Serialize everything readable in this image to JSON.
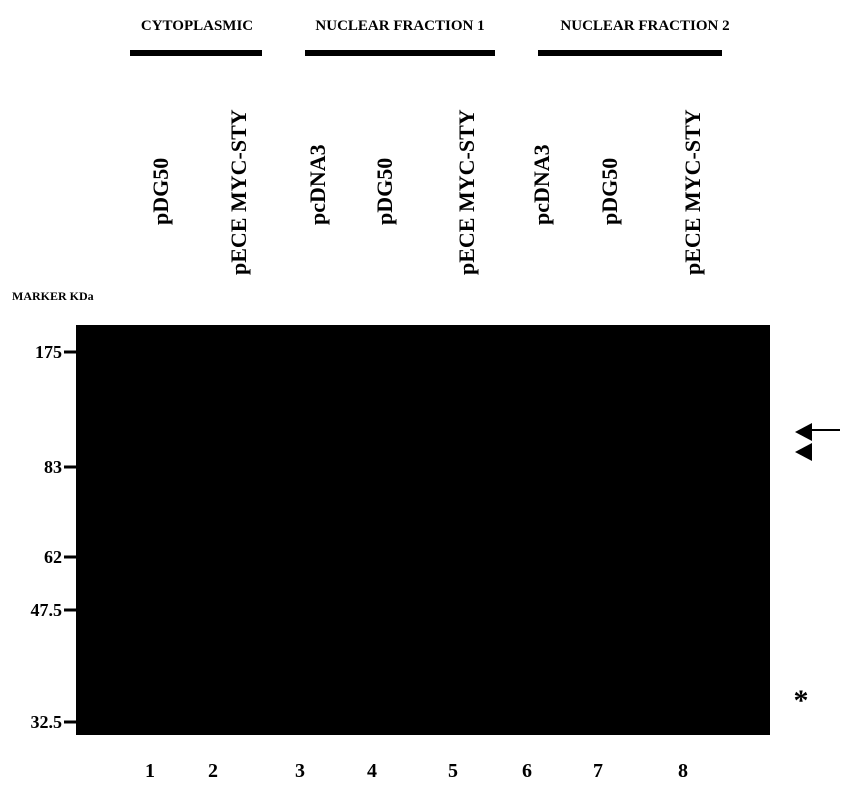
{
  "groups": [
    "CYTOPLASMIC",
    "NUCLEAR FRACTION 1",
    "NUCLEAR FRACTION 2"
  ],
  "lanes": [
    "pDG50",
    "pECE MYC-STY",
    "pcDNA3",
    "pDG50",
    "pECE MYC-STY",
    "pcDNA3",
    "pDG50",
    "pECE MYC-STY"
  ],
  "marker_title": "MARKER KDa",
  "markers": [
    "175",
    "83",
    "62",
    "47.5",
    "32.5"
  ],
  "lane_numbers": [
    "1",
    "2",
    "3",
    "4",
    "5",
    "6",
    "7",
    "8"
  ],
  "asterisk": "*"
}
